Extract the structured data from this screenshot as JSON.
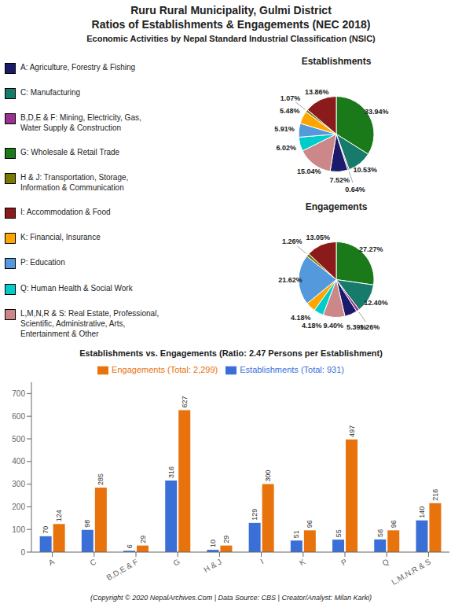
{
  "title": "Ruru Rural Municipality, Gulmi District\nRatios of Establishments & Engagements (NEC 2018)",
  "subtitle": "Economic Activities by Nepal Standard Industrial Classification (NSIC)",
  "annotations": [
    "(Copyright © 2020 NepalArchives.Com | Data Source: CBS | Creator/Analyst: Milan Karki)"
  ],
  "legend_entries": [
    {
      "name": "A: Agriculture, Forestry & Fishing",
      "color": "#1C1A6B"
    },
    {
      "name": "C: Manufacturing",
      "color": "#167B6B"
    },
    {
      "name": "B,D,E & F: Mining, Electricity, Gas,\nWater Supply & Construction",
      "color": "#9B3090"
    },
    {
      "name": "G: Wholesale & Retail Trade",
      "color": "#1A7A1A"
    },
    {
      "name": "H & J: Transportation, Storage,\nInformation & Communication",
      "color": "#7A7A00"
    },
    {
      "name": "I: Accommodation & Food",
      "color": "#8B1A1A"
    },
    {
      "name": "K: Financial, Insurance",
      "color": "#FFA500"
    },
    {
      "name": "P: Education",
      "color": "#5599DD"
    },
    {
      "name": "Q: Human Health & Social Work",
      "color": "#00CCCC"
    },
    {
      "name": "L,M,N,R & S: Real Estate, Professional,\nScientific, Administrative, Arts,\nEntertainment & Other",
      "color": "#CC8888"
    }
  ],
  "chart_data": [
    {
      "type": "pie",
      "title": "Establishments",
      "values": [
        33.94,
        10.53,
        0.64,
        7.52,
        15.04,
        6.02,
        5.91,
        5.48,
        1.07,
        13.86
      ],
      "value_labels": [
        "33.94%",
        "10.53%",
        "0.64%",
        "7.52%",
        "15.04%",
        "6.02%",
        "5.91%",
        "5.48%",
        "1.07%",
        "13.86%"
      ],
      "colors": [
        "#1A7A1A",
        "#167B6B",
        "#9B3090",
        "#1C1A6B",
        "#CC8888",
        "#00CCCC",
        "#5599DD",
        "#FFA500",
        "#7A7A00",
        "#8B1A1A"
      ],
      "data_labels": true
    },
    {
      "type": "pie",
      "title": "Engagements",
      "values": [
        27.27,
        12.4,
        1.26,
        5.39,
        9.4,
        4.18,
        4.18,
        21.62,
        1.26,
        13.05
      ],
      "value_labels": [
        "27.27%",
        "12.40%",
        "1.26%",
        "5.39%",
        "9.40%",
        "4.18%",
        "4.18%",
        "21.62%",
        "1.26%",
        "13.05%"
      ],
      "colors": [
        "#1A7A1A",
        "#167B6B",
        "#9B3090",
        "#1C1A6B",
        "#CC8888",
        "#00CCCC",
        "#FFA500",
        "#5599DD",
        "#7A7A00",
        "#8B1A1A"
      ],
      "data_labels": true
    },
    {
      "type": "bar",
      "title": "Establishments vs. Engagements (Ratio: 2.47 Persons per Establishment)",
      "categories": [
        "A",
        "C",
        "B,D,E & F",
        "G",
        "H & J",
        "I",
        "K",
        "P",
        "Q",
        "L,M,N,R & S"
      ],
      "series": [
        {
          "name": "Establishments (Total: 931)",
          "color": "#3A6FD8",
          "values": [
            70,
            98,
            6,
            316,
            10,
            129,
            51,
            55,
            56,
            140
          ]
        },
        {
          "name": "Engagements (Total: 2,299)",
          "color": "#E8720C",
          "values": [
            124,
            285,
            29,
            627,
            29,
            300,
            96,
            497,
            96,
            216
          ]
        }
      ],
      "ylim": [
        0,
        750
      ],
      "yticks": [
        0,
        100,
        200,
        300,
        400,
        500,
        600,
        700
      ],
      "grid": false,
      "legend": "top",
      "data_labels": true
    }
  ]
}
